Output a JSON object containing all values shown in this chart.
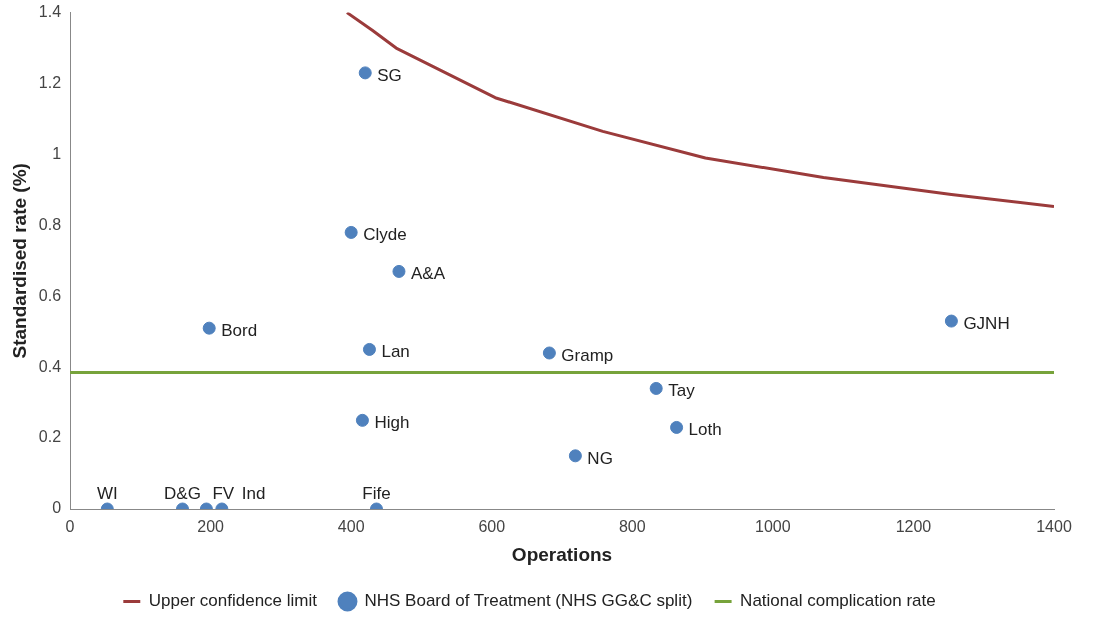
{
  "chart_data": {
    "type": "scatter",
    "xlabel": "Operations",
    "ylabel": "Standardised rate (%)",
    "xlim": [
      0,
      1400
    ],
    "xticks": [
      0,
      200,
      400,
      600,
      800,
      1000,
      1200,
      1400
    ],
    "ylim": [
      0,
      1.4
    ],
    "yticks": [
      0,
      0.2,
      0.4,
      0.6,
      0.8,
      1,
      1.2,
      1.4
    ],
    "grid": false,
    "legend": "bottom",
    "series": [
      {
        "name": "Upper confidence limit",
        "type": "line",
        "marker": "none",
        "color": "#9b3b3b",
        "x": [
          394,
          430,
          464,
          605,
          758,
          904,
          1072,
          1254,
          1400
        ],
        "values": [
          1.4,
          1.35,
          1.3,
          1.16,
          1.065,
          0.99,
          0.935,
          0.887,
          0.853
        ]
      },
      {
        "name": "NHS Board of Treatment (NHS GG&C split)",
        "marker": "circle",
        "color": "#4f81bd",
        "x": [
          53,
          160,
          194,
          216,
          436,
          420,
          400,
          468,
          198,
          426,
          682,
          416,
          834,
          863,
          719,
          1254
        ],
        "values": [
          0,
          0,
          0,
          0,
          0,
          1.23,
          0.78,
          0.67,
          0.51,
          0.45,
          0.44,
          0.25,
          0.34,
          0.23,
          0.15,
          0.53
        ]
      },
      {
        "name": "National complication rate",
        "type": "line",
        "marker": "none",
        "color": "#77a33b",
        "x": [
          0,
          1400
        ],
        "values": [
          0.385,
          0.385
        ]
      }
    ],
    "annotations": [
      {
        "text": "WI",
        "x": 53,
        "y": 0
      },
      {
        "text": "D&G",
        "x": 160,
        "y": 0
      },
      {
        "text": "FV",
        "x": 194,
        "y": 0
      },
      {
        "text": "Ind",
        "x": 216,
        "y": 0
      },
      {
        "text": "Fife",
        "x": 436,
        "y": 0
      },
      {
        "text": "SG",
        "x": 420,
        "y": 1.23
      },
      {
        "text": "Clyde",
        "x": 400,
        "y": 0.78
      },
      {
        "text": "A&A",
        "x": 468,
        "y": 0.67
      },
      {
        "text": "Bord",
        "x": 198,
        "y": 0.51
      },
      {
        "text": "Lan",
        "x": 426,
        "y": 0.45
      },
      {
        "text": "Gramp",
        "x": 682,
        "y": 0.44
      },
      {
        "text": "High",
        "x": 416,
        "y": 0.25
      },
      {
        "text": "Tay",
        "x": 834,
        "y": 0.34
      },
      {
        "text": "Loth",
        "x": 863,
        "y": 0.23
      },
      {
        "text": "NG",
        "x": 719,
        "y": 0.15
      },
      {
        "text": "GJNH",
        "x": 1254,
        "y": 0.53
      }
    ]
  }
}
